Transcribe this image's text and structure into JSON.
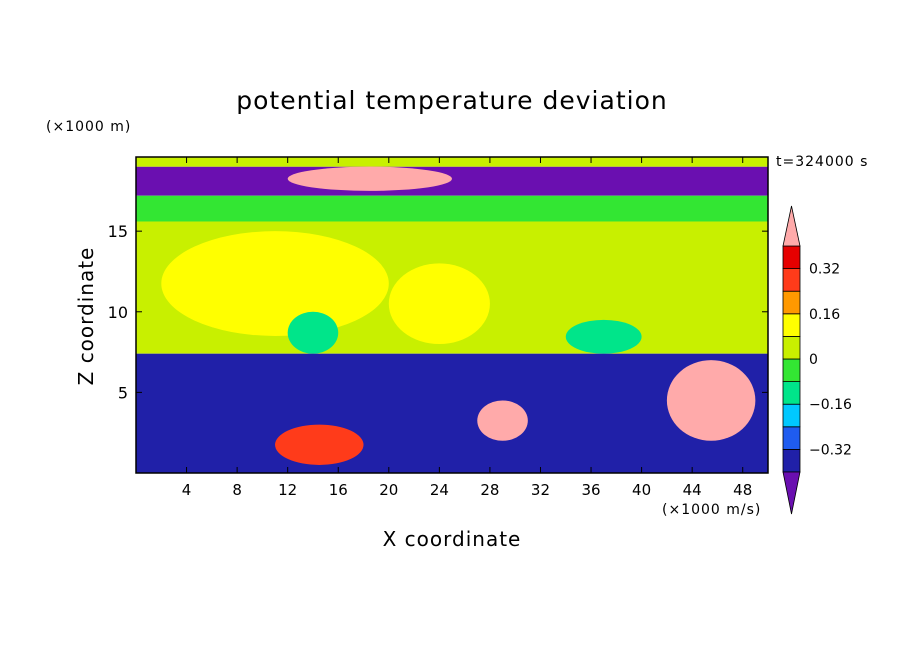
{
  "chart_data": {
    "type": "heatmap",
    "title": "potential temperature deviation",
    "xlabel": "X coordinate",
    "ylabel": "Z coordinate",
    "x_unit": "(×1000 m/s)",
    "y_unit": "(×1000 m)",
    "time_label": "t=324000 s",
    "xlim": [
      0,
      50
    ],
    "ylim": [
      0,
      19.6
    ],
    "x_ticks": [
      4,
      8,
      12,
      16,
      20,
      24,
      28,
      32,
      36,
      40,
      44,
      48
    ],
    "y_ticks": [
      5,
      10,
      15
    ],
    "colorbar": {
      "levels": [
        -0.4,
        -0.32,
        -0.24,
        -0.16,
        -0.08,
        0,
        0.08,
        0.16,
        0.24,
        0.32,
        0.4
      ],
      "tick_labels": [
        "0.32",
        "0.16",
        "0",
        "−0.16",
        "−0.32"
      ],
      "tick_values": [
        0.32,
        0.16,
        0,
        -0.16,
        -0.32
      ],
      "colors": [
        "#6a0fb0",
        "#2020a8",
        "#1f5cf0",
        "#00c8ff",
        "#00e58a",
        "#33e633",
        "#c8f000",
        "#ffff00",
        "#ff9900",
        "#ff3b1a",
        "#e60000",
        "#ffaaaa"
      ],
      "extend": "both"
    },
    "field_regions": [
      {
        "x": [
          0,
          50
        ],
        "z": [
          17.2,
          19.0
        ],
        "value": -0.45
      },
      {
        "x": [
          0,
          50
        ],
        "z": [
          19.0,
          19.6
        ],
        "value": 0.05
      },
      {
        "x": [
          0,
          50
        ],
        "z": [
          15.6,
          17.2
        ],
        "value": -0.05
      },
      {
        "x": [
          0,
          50
        ],
        "z": [
          7.4,
          15.6
        ],
        "value": 0.02
      },
      {
        "x": [
          2,
          20
        ],
        "z": [
          8.5,
          15
        ],
        "value": 0.15
      },
      {
        "x": [
          20,
          28
        ],
        "z": [
          8,
          13
        ],
        "value": 0.12
      },
      {
        "x": [
          12,
          16
        ],
        "z": [
          7.4,
          10
        ],
        "value": -0.13
      },
      {
        "x": [
          34,
          40
        ],
        "z": [
          7.4,
          9.5
        ],
        "value": -0.12
      },
      {
        "x": [
          0,
          50
        ],
        "z": [
          0,
          7.4
        ],
        "value": -0.4
      },
      {
        "x": [
          11,
          18
        ],
        "z": [
          0.5,
          3.0
        ],
        "value": 0.3
      },
      {
        "x": [
          27,
          31
        ],
        "z": [
          2.0,
          4.5
        ],
        "value": 0.42
      },
      {
        "x": [
          42,
          49
        ],
        "z": [
          2.0,
          7.0
        ],
        "value": 0.42
      },
      {
        "x": [
          12,
          25
        ],
        "z": [
          17.5,
          19.0
        ],
        "value": 0.42
      }
    ]
  }
}
